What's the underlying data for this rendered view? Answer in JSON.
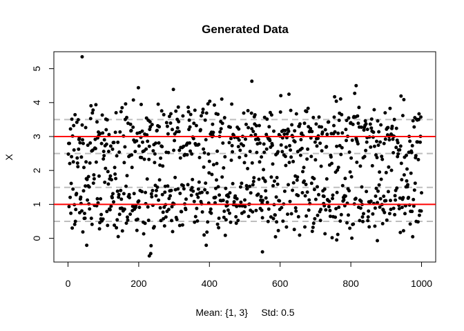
{
  "chart_data": {
    "type": "scatter",
    "title": "Generated Data",
    "xlabel": "Mean: {1, 3}     Std: 0.5",
    "ylabel": "X",
    "xlim": [
      -40,
      1040
    ],
    "ylim": [
      -0.7,
      5.5
    ],
    "x_ticks": [
      0,
      200,
      400,
      600,
      800,
      1000
    ],
    "y_ticks": [
      0,
      1,
      2,
      3,
      4,
      5
    ],
    "n_points": 1000,
    "series": [
      {
        "name": "points",
        "color": "#000000",
        "x_range": [
          1,
          1000
        ],
        "cluster_means": [
          1,
          3
        ],
        "std": 0.5
      }
    ],
    "reference_lines": [
      {
        "name": "mean-line",
        "values": [
          1,
          3
        ],
        "color": "#ff0000",
        "style": "solid"
      },
      {
        "name": "std-band-line",
        "values": [
          0.5,
          1.5,
          2.5,
          3.5
        ],
        "color": "#bebebe",
        "style": "dashed"
      }
    ],
    "notable_points": [
      {
        "x": 40,
        "y": 5.35
      },
      {
        "x": 520,
        "y": 4.63
      },
      {
        "x": 230,
        "y": -0.52
      },
      {
        "x": 550,
        "y": -0.4
      },
      {
        "x": 875,
        "y": -0.07
      },
      {
        "x": 760,
        "y": -0.05
      },
      {
        "x": 815,
        "y": 4.5
      }
    ]
  }
}
